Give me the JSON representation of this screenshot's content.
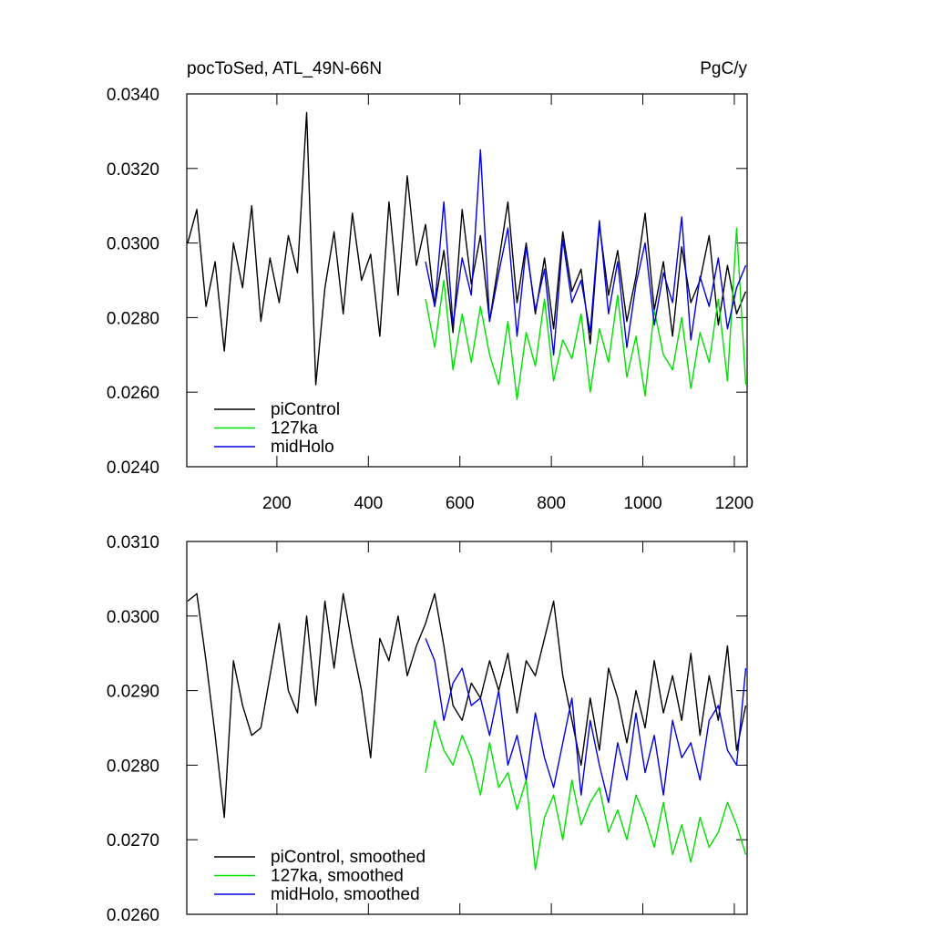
{
  "chart_data": [
    {
      "type": "line",
      "title": "pocToSed, ATL_49N-66N",
      "units_label": "PgC/y",
      "legend": "lower left",
      "xlim": [
        3,
        1228
      ],
      "xticks": [
        200,
        400,
        600,
        800,
        1000,
        1200
      ],
      "xtick_labels": true,
      "ylim": [
        0.024,
        0.034
      ],
      "yticks": [
        {
          "value": 0.024,
          "label": "0.0240"
        },
        {
          "value": 0.026,
          "label": "0.0260"
        },
        {
          "value": 0.028,
          "label": "0.0280"
        },
        {
          "value": 0.03,
          "label": "0.0300"
        },
        {
          "value": 0.032,
          "label": "0.0320"
        },
        {
          "value": 0.034,
          "label": "0.0340"
        }
      ],
      "x": [
        5,
        25,
        45,
        65,
        85,
        105,
        125,
        145,
        165,
        185,
        205,
        225,
        245,
        265,
        285,
        305,
        325,
        345,
        365,
        385,
        405,
        425,
        445,
        465,
        485,
        505,
        525,
        545,
        565,
        585,
        605,
        625,
        645,
        665,
        685,
        705,
        725,
        745,
        765,
        785,
        805,
        825,
        845,
        865,
        885,
        905,
        925,
        945,
        965,
        985,
        1005,
        1025,
        1045,
        1065,
        1085,
        1105,
        1125,
        1145,
        1165,
        1185,
        1205,
        1225
      ],
      "series": [
        {
          "name": "piControl",
          "color": "#000000",
          "values": [
            0.03,
            0.0309,
            0.0283,
            0.0295,
            0.0271,
            0.03,
            0.0288,
            0.031,
            0.0279,
            0.0296,
            0.0284,
            0.0302,
            0.0292,
            0.0335,
            0.0262,
            0.0288,
            0.0303,
            0.0281,
            0.0308,
            0.029,
            0.0297,
            0.0275,
            0.0311,
            0.0286,
            0.0318,
            0.0294,
            0.0305,
            0.0283,
            0.0298,
            0.0276,
            0.0309,
            0.0289,
            0.0302,
            0.0279,
            0.0295,
            0.0311,
            0.0284,
            0.03,
            0.0281,
            0.0296,
            0.0277,
            0.0303,
            0.0287,
            0.0293,
            0.0273,
            0.0305,
            0.0286,
            0.0298,
            0.0279,
            0.0291,
            0.0308,
            0.0282,
            0.0295,
            0.0275,
            0.0299,
            0.0284,
            0.029,
            0.0302,
            0.0278,
            0.0294,
            0.0281,
            0.0287
          ]
        },
        {
          "name": "127ka",
          "color": "#00e000",
          "values": [
            null,
            null,
            null,
            null,
            null,
            null,
            null,
            null,
            null,
            null,
            null,
            null,
            null,
            null,
            null,
            null,
            null,
            null,
            null,
            null,
            null,
            null,
            null,
            null,
            null,
            null,
            0.0285,
            0.0272,
            0.029,
            0.0266,
            0.0281,
            0.0268,
            0.0283,
            0.027,
            0.0262,
            0.0279,
            0.0258,
            0.0276,
            0.0267,
            0.0285,
            0.0263,
            0.0274,
            0.0269,
            0.0281,
            0.026,
            0.0277,
            0.0268,
            0.0286,
            0.0264,
            0.0275,
            0.0259,
            0.0282,
            0.027,
            0.0266,
            0.028,
            0.0261,
            0.0276,
            0.0268,
            0.0285,
            0.0263,
            0.0304,
            0.0262
          ]
        },
        {
          "name": "midHolo",
          "color": "#0000e0",
          "values": [
            null,
            null,
            null,
            null,
            null,
            null,
            null,
            null,
            null,
            null,
            null,
            null,
            null,
            null,
            null,
            null,
            null,
            null,
            null,
            null,
            null,
            null,
            null,
            null,
            null,
            null,
            0.0295,
            0.0283,
            0.0311,
            0.0278,
            0.0296,
            0.0286,
            0.0325,
            0.0279,
            0.0292,
            0.0304,
            0.0275,
            0.0299,
            0.0282,
            0.0293,
            0.027,
            0.0301,
            0.0284,
            0.029,
            0.0276,
            0.0306,
            0.0281,
            0.0295,
            0.0272,
            0.0289,
            0.03,
            0.0278,
            0.0292,
            0.0284,
            0.0307,
            0.0274,
            0.0291,
            0.0283,
            0.0296,
            0.0277,
            0.0288,
            0.0294
          ]
        }
      ]
    },
    {
      "type": "line",
      "legend": "lower left",
      "xlim": [
        3,
        1228
      ],
      "xticks": [
        200,
        400,
        600,
        800,
        1000,
        1200
      ],
      "xtick_labels": false,
      "ylim": [
        0.026,
        0.031
      ],
      "yticks": [
        {
          "value": 0.026,
          "label": "0.0260"
        },
        {
          "value": 0.027,
          "label": "0.0270"
        },
        {
          "value": 0.028,
          "label": "0.0280"
        },
        {
          "value": 0.029,
          "label": "0.0290"
        },
        {
          "value": 0.03,
          "label": "0.0300"
        },
        {
          "value": 0.031,
          "label": "0.0310"
        }
      ],
      "x": [
        5,
        25,
        45,
        65,
        85,
        105,
        125,
        145,
        165,
        185,
        205,
        225,
        245,
        265,
        285,
        305,
        325,
        345,
        365,
        385,
        405,
        425,
        445,
        465,
        485,
        505,
        525,
        545,
        565,
        585,
        605,
        625,
        645,
        665,
        685,
        705,
        725,
        745,
        765,
        785,
        805,
        825,
        845,
        865,
        885,
        905,
        925,
        945,
        965,
        985,
        1005,
        1025,
        1045,
        1065,
        1085,
        1105,
        1125,
        1145,
        1165,
        1185,
        1205,
        1225
      ],
      "series": [
        {
          "name": "piControl, smoothed",
          "color": "#000000",
          "values": [
            0.0302,
            0.0303,
            0.0294,
            0.0284,
            0.0273,
            0.0294,
            0.0288,
            0.0284,
            0.0285,
            0.0292,
            0.0299,
            0.029,
            0.0287,
            0.03,
            0.0288,
            0.0302,
            0.0293,
            0.0303,
            0.0296,
            0.029,
            0.0281,
            0.0297,
            0.0294,
            0.03,
            0.0292,
            0.0296,
            0.0299,
            0.0303,
            0.0296,
            0.0288,
            0.0286,
            0.0291,
            0.0289,
            0.0294,
            0.029,
            0.0295,
            0.0287,
            0.0294,
            0.0292,
            0.0297,
            0.0302,
            0.0292,
            0.0286,
            0.028,
            0.0289,
            0.0282,
            0.0293,
            0.0289,
            0.0283,
            0.029,
            0.0285,
            0.0294,
            0.0287,
            0.0292,
            0.0286,
            0.0295,
            0.0284,
            0.0292,
            0.0286,
            0.0296,
            0.0282,
            0.0288
          ]
        },
        {
          "name": "127ka, smoothed",
          "color": "#00e000",
          "values": [
            null,
            null,
            null,
            null,
            null,
            null,
            null,
            null,
            null,
            null,
            null,
            null,
            null,
            null,
            null,
            null,
            null,
            null,
            null,
            null,
            null,
            null,
            null,
            null,
            null,
            null,
            0.0279,
            0.0286,
            0.0282,
            0.028,
            0.0284,
            0.0281,
            0.0276,
            0.0283,
            0.0277,
            0.0279,
            0.0274,
            0.0278,
            0.0266,
            0.0273,
            0.0276,
            0.027,
            0.0278,
            0.0272,
            0.0275,
            0.0277,
            0.0271,
            0.0274,
            0.027,
            0.0276,
            0.0273,
            0.0269,
            0.0275,
            0.0268,
            0.0272,
            0.0267,
            0.0273,
            0.0269,
            0.0271,
            0.0275,
            0.0272,
            0.0268
          ]
        },
        {
          "name": "midHolo, smoothed",
          "color": "#0000e0",
          "values": [
            null,
            null,
            null,
            null,
            null,
            null,
            null,
            null,
            null,
            null,
            null,
            null,
            null,
            null,
            null,
            null,
            null,
            null,
            null,
            null,
            null,
            null,
            null,
            null,
            null,
            null,
            0.0297,
            0.0294,
            0.0286,
            0.0291,
            0.0293,
            0.0288,
            0.0289,
            0.0284,
            0.029,
            0.028,
            0.0284,
            0.0278,
            0.0287,
            0.0281,
            0.0277,
            0.0283,
            0.0289,
            0.0276,
            0.0286,
            0.028,
            0.0275,
            0.0283,
            0.0278,
            0.0287,
            0.0279,
            0.0284,
            0.0276,
            0.0286,
            0.0281,
            0.0283,
            0.0278,
            0.0286,
            0.0288,
            0.0282,
            0.028,
            0.0293
          ]
        }
      ]
    }
  ]
}
